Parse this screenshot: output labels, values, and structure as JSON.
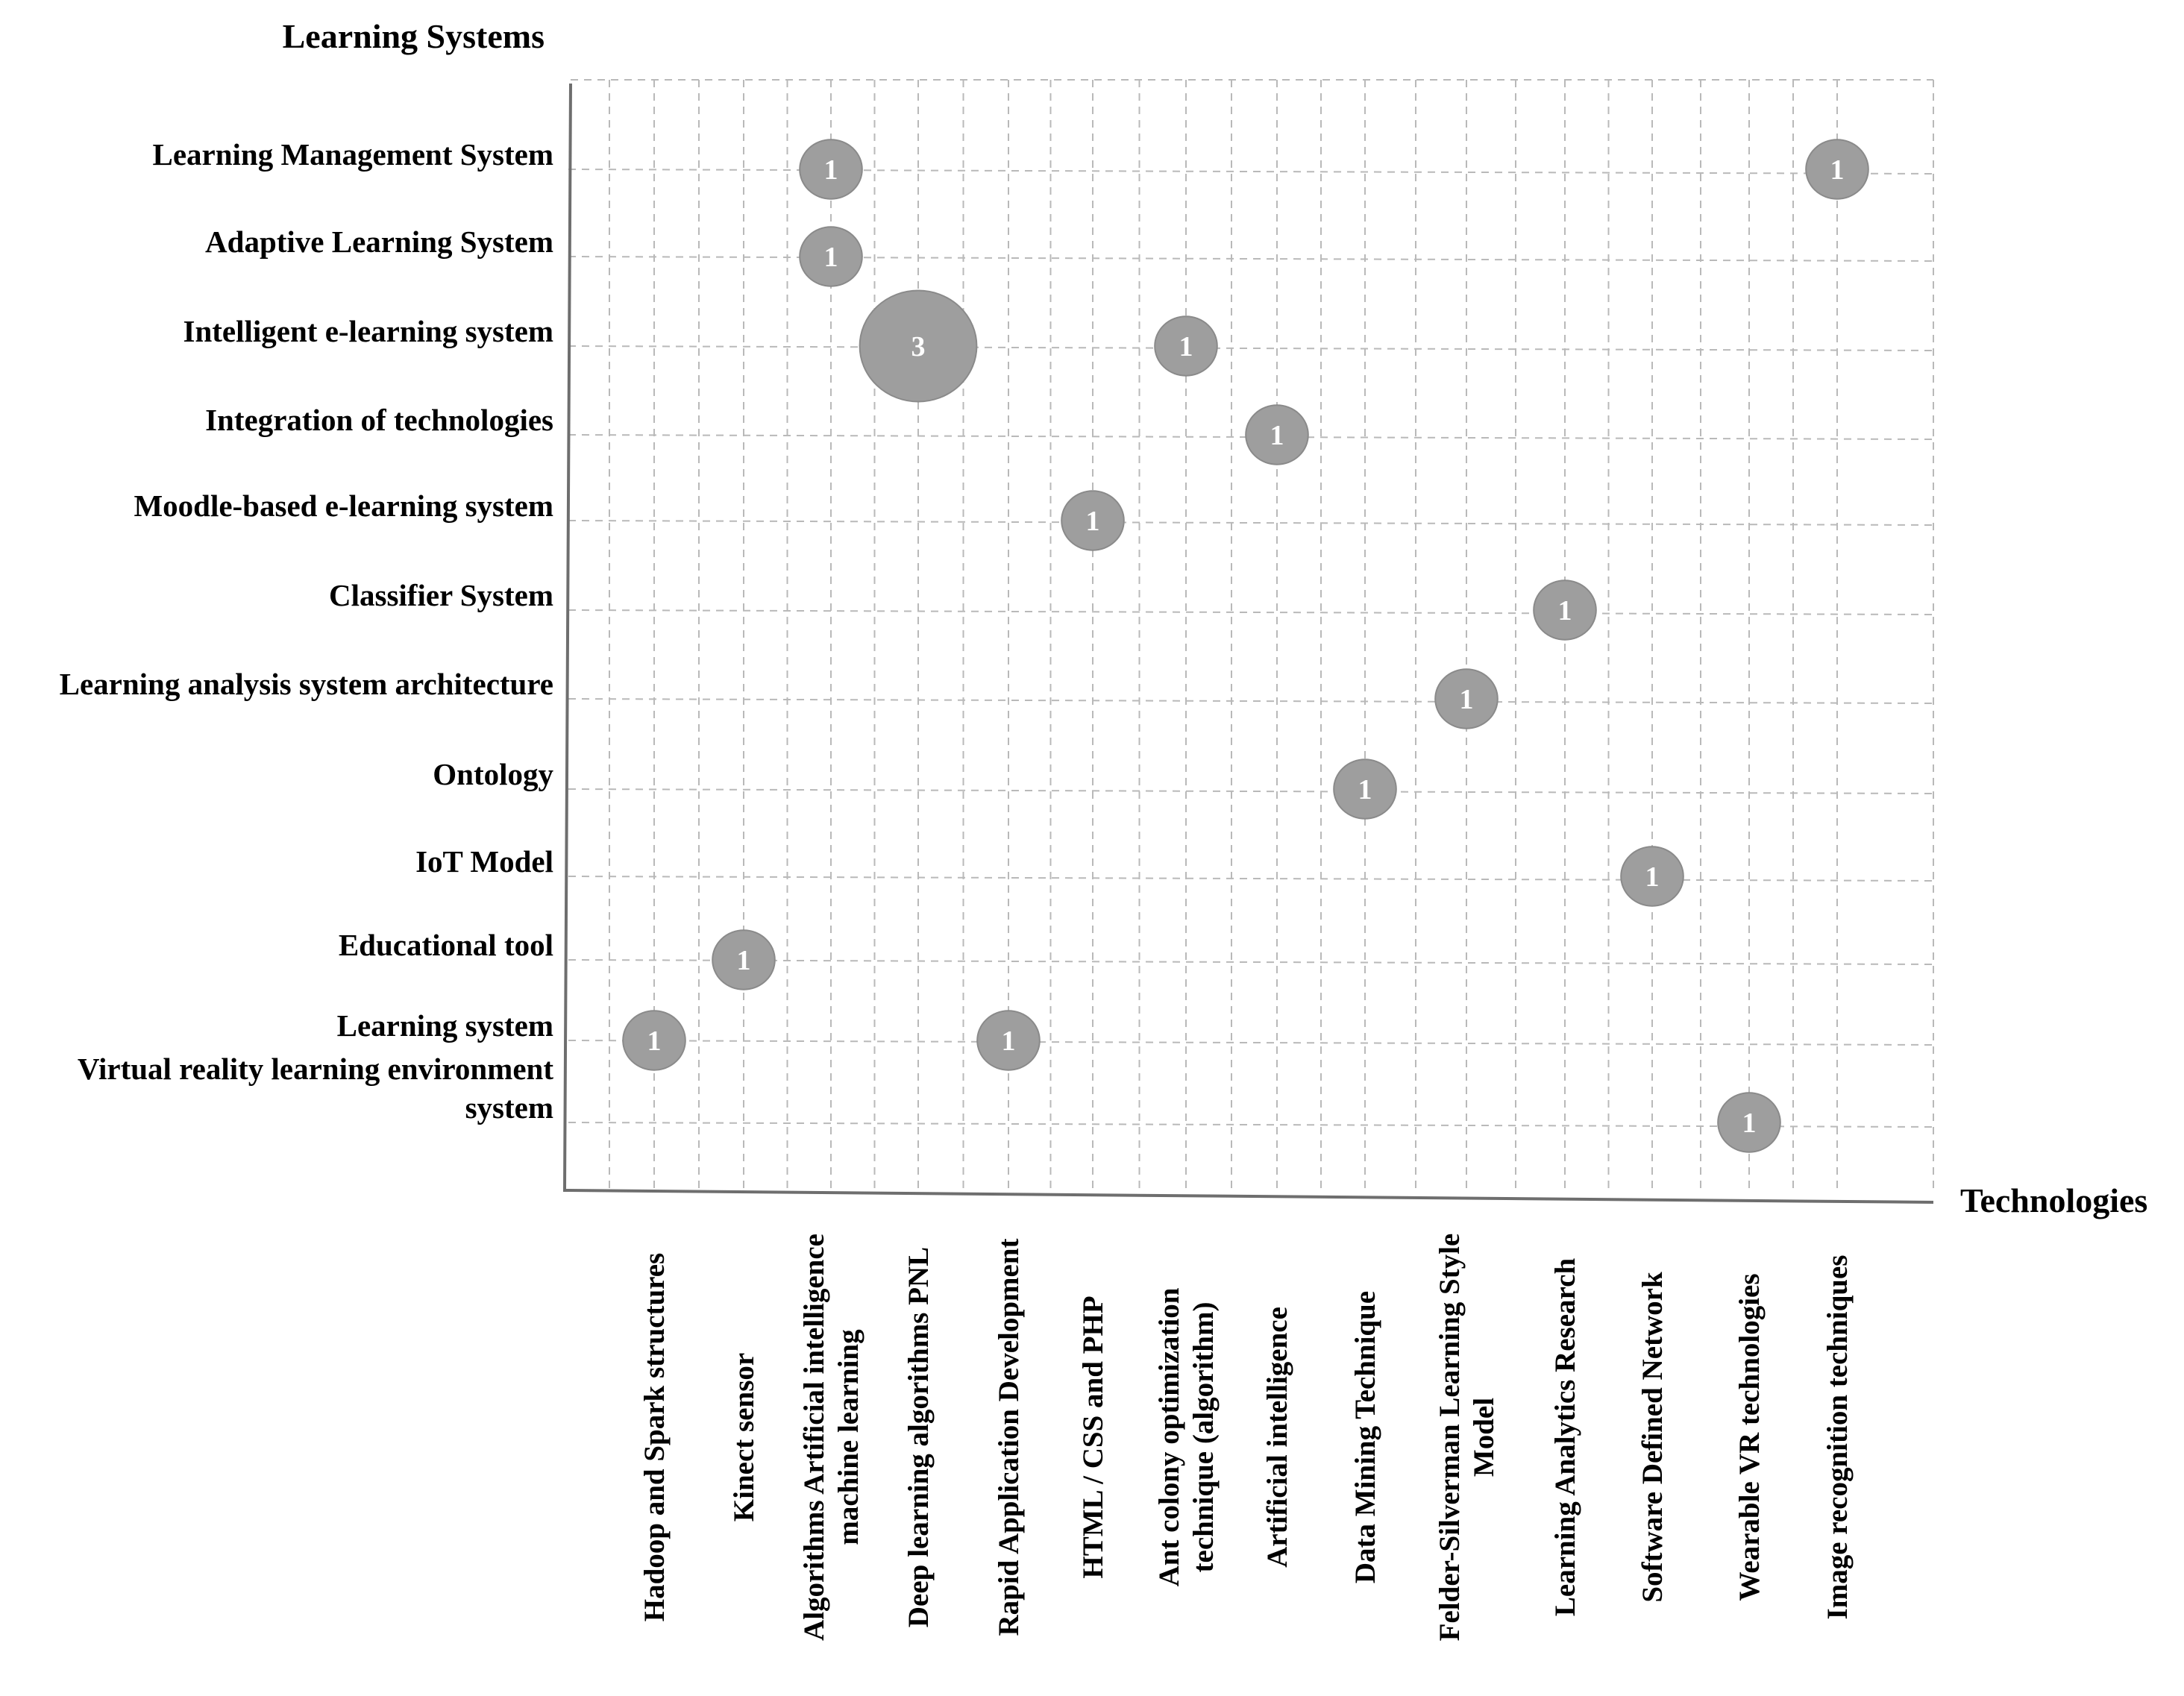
{
  "chart_data": {
    "type": "bubble",
    "title": "",
    "ylabel": "Learning Systems",
    "xlabel": "Technologies",
    "grid": true,
    "legend": "none",
    "categories_y": [
      [
        "Learning Management System"
      ],
      [
        "Adaptive Learning System"
      ],
      [
        "Intelligent e-learning system"
      ],
      [
        "Integration of technologies"
      ],
      [
        "Moodle-based e-learning system"
      ],
      [
        "Classifier System"
      ],
      [
        "Learning analysis system architecture"
      ],
      [
        "Ontology"
      ],
      [
        "IoT Model"
      ],
      [
        "Educational tool"
      ],
      [
        "Learning system"
      ],
      [
        "Virtual reality learning environment",
        "system"
      ]
    ],
    "categories_x": [
      [
        "Hadoop and Spark structures"
      ],
      [
        "Kinect sensor"
      ],
      [
        "Algorithms Artificial intelligence",
        "machine learning"
      ],
      [
        "Deep learning algorithms PNL"
      ],
      [
        "Rapid Application Development"
      ],
      [
        "HTML / CSS and PHP"
      ],
      [
        "Ant colony optimization",
        "technique (algorithm)"
      ],
      [
        "Artificial intelligence"
      ],
      [
        "Data Mining Technique"
      ],
      [
        "Felder-Silverman Learning Style",
        "Model"
      ],
      [
        "Learning Analytics Research"
      ],
      [
        "Software Defined Network"
      ],
      [
        "Wearable VR technologies"
      ],
      [
        "Image recognition techniques"
      ]
    ],
    "points": [
      {
        "x": 2,
        "y": 0,
        "value": 1,
        "label": "1"
      },
      {
        "x": 13,
        "y": 0,
        "value": 1,
        "label": "1"
      },
      {
        "x": 2,
        "y": 1,
        "value": 1,
        "label": "1"
      },
      {
        "x": 3,
        "y": 2,
        "value": 3,
        "label": "3"
      },
      {
        "x": 6,
        "y": 2,
        "value": 1,
        "label": "1"
      },
      {
        "x": 7,
        "y": 3,
        "value": 1,
        "label": "1"
      },
      {
        "x": 5,
        "y": 4,
        "value": 1,
        "label": "1"
      },
      {
        "x": 10,
        "y": 5,
        "value": 1,
        "label": "1"
      },
      {
        "x": 9,
        "y": 6,
        "value": 1,
        "label": "1"
      },
      {
        "x": 8,
        "y": 7,
        "value": 1,
        "label": "1"
      },
      {
        "x": 11,
        "y": 8,
        "value": 1,
        "label": "1"
      },
      {
        "x": 1,
        "y": 9,
        "value": 1,
        "label": "1"
      },
      {
        "x": 0,
        "y": 10,
        "value": 1,
        "label": "1"
      },
      {
        "x": 4,
        "y": 10,
        "value": 1,
        "label": "1"
      },
      {
        "x": 12,
        "y": 11,
        "value": 1,
        "label": "1"
      }
    ]
  },
  "colors": {
    "bubble_fill": "#9e9e9e",
    "bubble_text": "#ffffff",
    "grid": "#b9b9b9",
    "axis": "#6e6e6e"
  }
}
